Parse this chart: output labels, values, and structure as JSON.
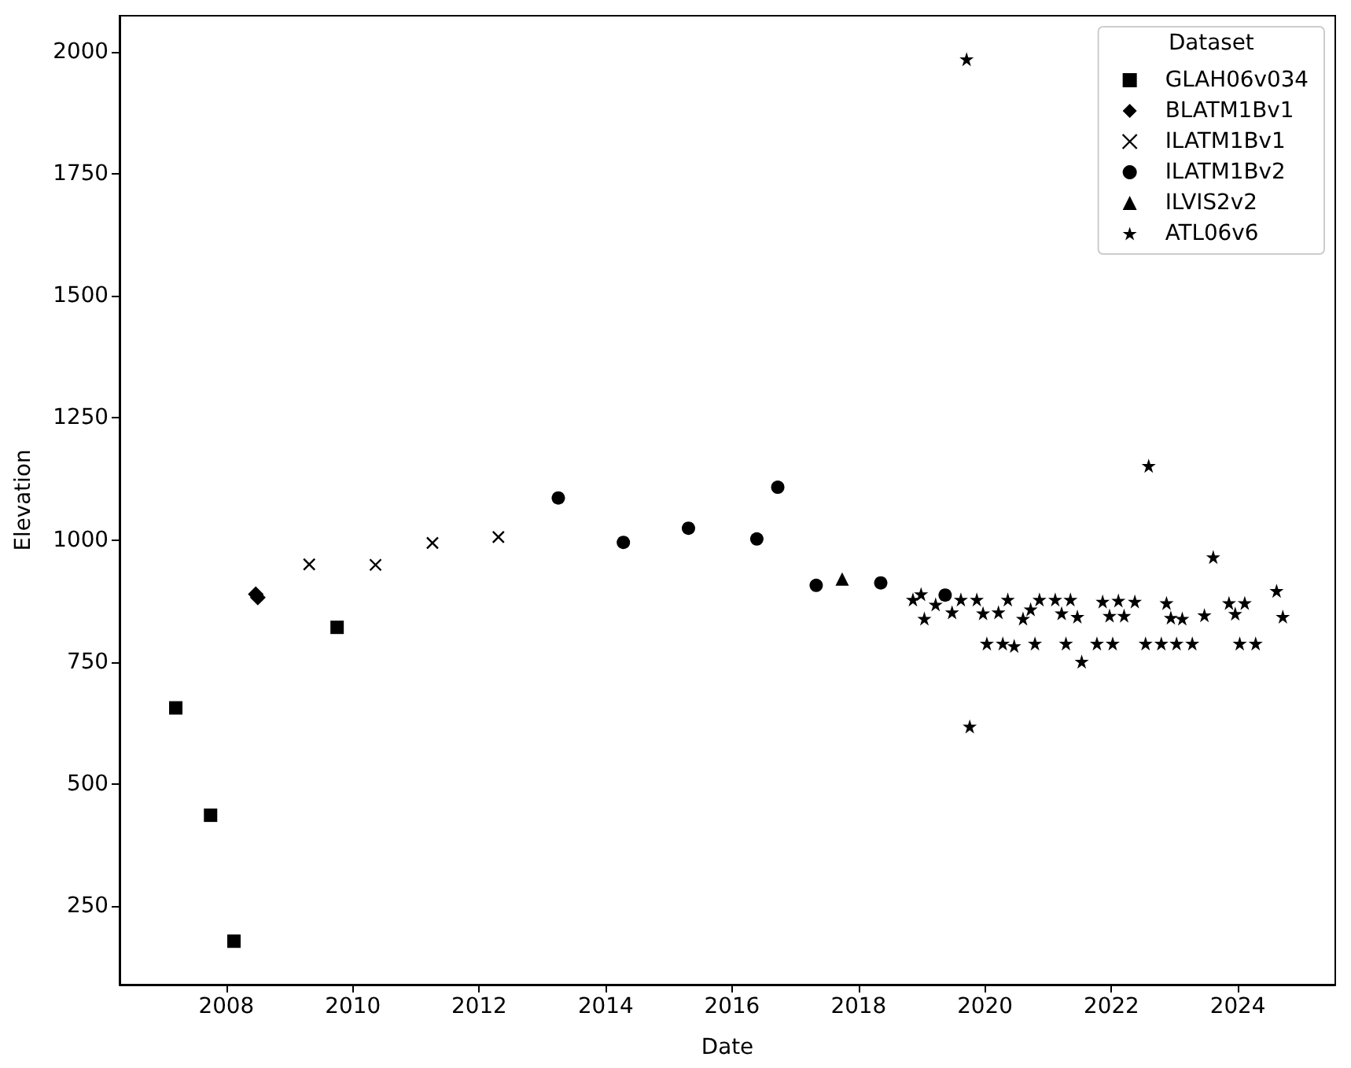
{
  "chart_data": {
    "type": "scatter",
    "xlabel": "Date",
    "ylabel": "Elevation",
    "legend_title": "Dataset",
    "legend": "top right",
    "xlim": [
      "2006-04-24",
      "2025-07-17"
    ],
    "xticks": [
      "2008",
      "2010",
      "2012",
      "2014",
      "2016",
      "2018",
      "2020",
      "2022",
      "2024"
    ],
    "ylim": [
      89,
      2074
    ],
    "yticks": [
      250,
      500,
      750,
      1000,
      1250,
      1500,
      1750,
      2000
    ],
    "series": [
      {
        "name": "GLAH06v034",
        "color": "#000000",
        "marker": "square",
        "x": [
          "2007-03-15",
          "2007-10-02",
          "2008-02-14",
          "2009-10-02"
        ],
        "values": [
          656,
          436,
          178,
          821
        ]
      },
      {
        "name": "BLATM1Bv1",
        "color": "#000000",
        "marker": "diamond",
        "x": [
          "2008-06-19",
          "2008-07-01"
        ],
        "values": [
          889,
          882
        ]
      },
      {
        "name": "ILATM1Bv1",
        "color": "#000000",
        "marker": "cross",
        "x": [
          "2009-04-24",
          "2010-05-12",
          "2011-04-06",
          "2012-04-21"
        ],
        "values": [
          950,
          949,
          994,
          1006
        ]
      },
      {
        "name": "ILATM1Bv2",
        "color": "#000000",
        "marker": "circle",
        "x": [
          "2013-04-02",
          "2014-04-13",
          "2015-04-24",
          "2016-05-23",
          "2016-09-21",
          "2017-05-01",
          "2018-05-09",
          "2019-05-16"
        ],
        "values": [
          1086,
          995,
          1024,
          1002,
          1108,
          907,
          912,
          887
        ]
      },
      {
        "name": "ILVIS2v2",
        "color": "#000000",
        "marker": "triangle",
        "x": [
          "2017-09-28"
        ],
        "values": [
          920
        ]
      },
      {
        "name": "ATL06v6",
        "color": "#000000",
        "marker": "star",
        "x": [
          "2018-11-11",
          "2018-12-28",
          "2019-01-16",
          "2019-03-22",
          "2019-06-25",
          "2019-08-15",
          "2019-09-17",
          "2019-10-05",
          "2019-11-15",
          "2019-12-21",
          "2020-01-12",
          "2020-03-19",
          "2020-04-13",
          "2020-05-12",
          "2020-06-18",
          "2020-08-08",
          "2020-09-21",
          "2020-10-16",
          "2020-11-11",
          "2021-02-10",
          "2021-03-19",
          "2021-04-13",
          "2021-05-09",
          "2021-06-18",
          "2021-07-13",
          "2021-10-09",
          "2021-11-11",
          "2021-12-21",
          "2022-01-08",
          "2022-02-10",
          "2022-03-15",
          "2022-05-16",
          "2022-07-17",
          "2022-08-04",
          "2022-10-16",
          "2022-11-15",
          "2022-12-10",
          "2023-01-12",
          "2023-02-14",
          "2023-04-13",
          "2023-06-22",
          "2023-08-12",
          "2023-11-11",
          "2023-12-17",
          "2024-01-12",
          "2024-02-10",
          "2024-04-13",
          "2024-08-12",
          "2024-09-17"
        ],
        "values": [
          878,
          889,
          839,
          868,
          852,
          878,
          1985,
          618,
          878,
          850,
          788,
          852,
          788,
          878,
          783,
          839,
          858,
          788,
          878,
          878,
          850,
          788,
          878,
          843,
          751,
          788,
          874,
          845,
          788,
          876,
          845,
          874,
          788,
          1152,
          788,
          871,
          841,
          788,
          839,
          788,
          846,
          965,
          871,
          849,
          788,
          871,
          788,
          896,
          843
        ]
      }
    ]
  }
}
